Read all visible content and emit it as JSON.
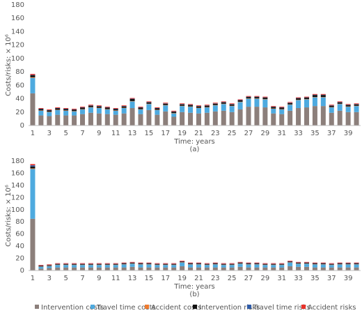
{
  "chart_data": [
    {
      "type": "stacked-bar",
      "subtitle": "(a)",
      "x_label": "Time: years",
      "y_label": "Costs/risks:  × 10⁶",
      "categories": [
        "1",
        null,
        "3",
        null,
        "5",
        null,
        "7",
        null,
        "9",
        null,
        "11",
        null,
        "13",
        null,
        "15",
        null,
        "17",
        null,
        "19",
        null,
        "21",
        null,
        "23",
        null,
        "25",
        null,
        "27",
        null,
        "29",
        null,
        "31",
        null,
        "33",
        null,
        "35",
        null,
        "37",
        null,
        "39",
        null
      ],
      "ylim": [
        0,
        180
      ],
      "yticks": [
        0,
        20,
        40,
        60,
        80,
        100,
        120,
        140,
        160,
        180
      ],
      "series": [
        {
          "name": "Intervention costs",
          "color": "#8c7f7b",
          "values": [
            48,
            15,
            14,
            16,
            15,
            15,
            17,
            19,
            18,
            17,
            16,
            18,
            26,
            17,
            23,
            16,
            21,
            13,
            20,
            19,
            18,
            19,
            21,
            22,
            20,
            24,
            28,
            28,
            27,
            18,
            17,
            22,
            26,
            27,
            29,
            29,
            19,
            22,
            20,
            20
          ]
        },
        {
          "name": "Travel time costs",
          "color": "#4eaadf",
          "values": [
            23,
            7,
            6,
            7,
            7,
            6,
            7,
            8,
            8,
            7,
            6,
            8,
            10,
            7,
            9,
            7,
            9,
            5,
            9,
            9,
            8,
            8,
            9,
            10,
            9,
            11,
            12,
            12,
            12,
            7,
            7,
            9,
            12,
            12,
            13,
            13,
            8,
            10,
            8,
            9
          ]
        },
        {
          "name": "Accident costs",
          "color": "#ee7b30",
          "values": [
            1,
            0.5,
            0.5,
            0.5,
            0.5,
            0.5,
            0.5,
            0.5,
            0.5,
            0.5,
            0.5,
            0.5,
            0.5,
            0.5,
            0.5,
            0.5,
            0.5,
            0.5,
            0.5,
            0.5,
            0.5,
            0.5,
            0.5,
            0.5,
            0.5,
            0.5,
            0.5,
            0.5,
            0.5,
            0.5,
            0.5,
            0.5,
            0.5,
            0.5,
            0.5,
            0.5,
            0.5,
            0.5,
            0.5,
            0.5
          ]
        },
        {
          "name": "Intervention risks",
          "color": "#111111",
          "values": [
            3,
            2,
            2,
            2,
            2,
            2,
            2,
            2,
            2,
            2,
            2,
            2,
            3,
            2,
            2,
            2,
            2,
            2,
            2,
            2,
            2,
            2,
            2,
            2,
            2,
            2,
            2,
            2,
            2,
            2,
            2,
            2,
            2,
            2,
            3,
            3,
            2,
            2,
            2,
            2
          ]
        },
        {
          "name": "Travel time risks",
          "color": "#2f5ca8",
          "values": [
            0.5,
            0.5,
            0.5,
            0.5,
            0.5,
            0.5,
            0.5,
            0.5,
            0.5,
            0.5,
            0.5,
            0.5,
            0.5,
            0.5,
            0.5,
            0.5,
            0.5,
            0.5,
            0.5,
            0.5,
            0.5,
            0.5,
            0.5,
            0.5,
            0.5,
            0.5,
            0.5,
            0.5,
            0.5,
            0.5,
            0.5,
            0.5,
            0.5,
            0.5,
            0.5,
            0.5,
            0.5,
            0.5,
            0.5,
            0.5
          ]
        },
        {
          "name": "Accident risks",
          "color": "#e8322a",
          "values": [
            1.5,
            1,
            1,
            1,
            1,
            1,
            1,
            1,
            1,
            1,
            1,
            1,
            1,
            1,
            1,
            1,
            1,
            1,
            1,
            1,
            1,
            1,
            1,
            1,
            1,
            1,
            1,
            1,
            1,
            1,
            1,
            1,
            1,
            1,
            1,
            1,
            1,
            1,
            1,
            1
          ]
        }
      ]
    },
    {
      "type": "stacked-bar",
      "subtitle": "(b)",
      "x_label": "Time: years",
      "y_label": "Costs/risks:  × 10⁶",
      "categories": [
        "1",
        null,
        "3",
        null,
        "5",
        null,
        "7",
        null,
        "9",
        null,
        "11",
        null,
        "13",
        null,
        "15",
        null,
        "17",
        null,
        "19",
        null,
        "21",
        null,
        "23",
        null,
        "25",
        null,
        "27",
        null,
        "29",
        null,
        "31",
        null,
        "33",
        null,
        "35",
        null,
        "37",
        null,
        "39",
        null
      ],
      "ylim": [
        0,
        180
      ],
      "yticks": [
        0,
        20,
        40,
        60,
        80,
        100,
        120,
        140,
        160,
        180
      ],
      "series": [
        {
          "name": "Intervention costs",
          "color": "#8c7f7b",
          "values": [
            85,
            3,
            4,
            5,
            5,
            5,
            5,
            5,
            5,
            5,
            5,
            5,
            6,
            5,
            5,
            5,
            5,
            5,
            7,
            5,
            5,
            5,
            5,
            5,
            5,
            6,
            5,
            5,
            5,
            5,
            5,
            7,
            6,
            6,
            5,
            5,
            5,
            5,
            5,
            5
          ]
        },
        {
          "name": "Travel time costs",
          "color": "#4eaadf",
          "values": [
            82,
            3,
            3,
            4,
            4,
            4,
            4,
            4,
            4,
            4,
            4,
            5,
            5,
            5,
            5,
            4,
            4,
            4,
            6,
            5,
            5,
            4,
            5,
            4,
            4,
            5,
            5,
            5,
            4,
            4,
            4,
            6,
            5,
            5,
            5,
            5,
            4,
            5,
            5,
            5
          ]
        },
        {
          "name": "Accident costs",
          "color": "#ee7b30",
          "values": [
            1,
            0.5,
            0.5,
            0.5,
            0.5,
            0.5,
            0.5,
            0.5,
            0.5,
            0.5,
            0.5,
            0.5,
            0.5,
            0.5,
            0.5,
            0.5,
            0.5,
            0.5,
            0.5,
            0.5,
            0.5,
            0.5,
            0.5,
            0.5,
            0.5,
            0.5,
            0.5,
            0.5,
            0.5,
            0.5,
            0.5,
            0.5,
            0.5,
            0.5,
            0.5,
            0.5,
            0.5,
            0.5,
            0.5,
            0.5
          ]
        },
        {
          "name": "Intervention risks",
          "color": "#111111",
          "values": [
            3,
            1,
            1,
            1,
            1,
            1,
            1,
            1,
            1,
            1,
            1,
            1,
            1,
            1,
            1,
            1,
            1,
            1,
            1,
            1,
            1,
            1,
            1,
            1,
            1,
            1,
            1,
            1,
            1,
            1,
            1,
            1,
            1,
            1,
            1,
            1,
            1,
            1,
            1,
            1
          ]
        },
        {
          "name": "Travel time risks",
          "color": "#2f5ca8",
          "values": [
            2,
            0.5,
            0.5,
            0.5,
            0.5,
            0.5,
            0.5,
            0.5,
            0.5,
            0.5,
            0.5,
            0.5,
            0.5,
            0.5,
            0.5,
            0.5,
            0.5,
            0.5,
            0.5,
            0.5,
            0.5,
            0.5,
            0.5,
            0.5,
            0.5,
            0.5,
            0.5,
            0.5,
            0.5,
            0.5,
            0.5,
            0.5,
            0.5,
            0.5,
            0.5,
            0.5,
            0.5,
            0.5,
            0.5,
            0.5
          ]
        },
        {
          "name": "Accident risks",
          "color": "#e8322a",
          "values": [
            2,
            1,
            1,
            1,
            1,
            1,
            1,
            1,
            1,
            1,
            1,
            1,
            1,
            1,
            1,
            1,
            1,
            1,
            1,
            1,
            1,
            1,
            1,
            1,
            1,
            1,
            1,
            1,
            1,
            1,
            1,
            1,
            1,
            1,
            1,
            1,
            1,
            1,
            1,
            1
          ]
        }
      ]
    }
  ]
}
